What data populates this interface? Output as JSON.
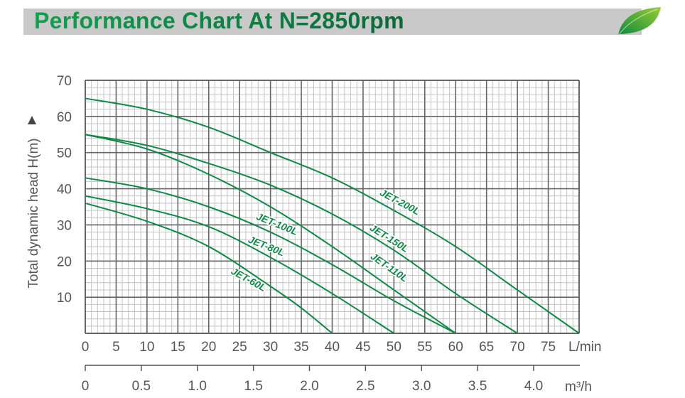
{
  "header": {
    "title": "Performance Chart At N=2850rpm",
    "logo_icon": "green-leaf-icon"
  },
  "colors": {
    "curve": "#0e8a45",
    "major_grid": "#666666",
    "minor_grid": "#c4c4c4",
    "banner": "#c8c9c8"
  },
  "chart_data": {
    "type": "line",
    "title": "Performance Chart At N=2850rpm",
    "ylabel": "Total dynamic head H(m)",
    "xlabel": "L/min",
    "x2label": "m³/h",
    "xlim": [
      0,
      80
    ],
    "ylim": [
      0,
      70
    ],
    "grid": true,
    "x_ticks": [
      0,
      5,
      10,
      15,
      20,
      25,
      30,
      35,
      40,
      45,
      50,
      55,
      60,
      65,
      70,
      75
    ],
    "x_tick_labels": [
      "0",
      "5",
      "10",
      "15",
      "20",
      "25",
      "30",
      "35",
      "40",
      "45",
      "50",
      "55",
      "60",
      "65",
      "70",
      "75"
    ],
    "y_ticks": [
      10,
      20,
      30,
      40,
      50,
      60,
      70
    ],
    "y_tick_labels": [
      "10",
      "20",
      "30",
      "40",
      "50",
      "60",
      "70"
    ],
    "x2_ticks": [
      0,
      0.5,
      1.0,
      1.5,
      2.0,
      2.5,
      3.0,
      3.5,
      4.0
    ],
    "x2_tick_labels": [
      "0",
      "0.5",
      "1.0",
      "1.5",
      "2.0",
      "2.5",
      "3.0",
      "3.5",
      "4.0"
    ],
    "series": [
      {
        "name": "JET-60L",
        "x": [
          0,
          10,
          20,
          30,
          35,
          40
        ],
        "y": [
          36,
          31,
          24,
          13,
          7,
          0
        ]
      },
      {
        "name": "JET-80L",
        "x": [
          0,
          10,
          20,
          30,
          40,
          50
        ],
        "y": [
          38,
          34.5,
          29.5,
          21,
          11,
          0
        ]
      },
      {
        "name": "JET-100L",
        "x": [
          0,
          10,
          20,
          30,
          40,
          50,
          60
        ],
        "y": [
          43,
          40,
          35,
          28,
          19,
          9,
          0
        ]
      },
      {
        "name": "JET-110L",
        "x": [
          0,
          10,
          20,
          30,
          40,
          50,
          60
        ],
        "y": [
          55,
          51,
          44,
          35,
          24,
          12,
          0
        ]
      },
      {
        "name": "JET-150L",
        "x": [
          0,
          10,
          20,
          30,
          40,
          50,
          60,
          70
        ],
        "y": [
          55,
          52,
          47,
          41,
          33,
          23,
          11,
          0
        ]
      },
      {
        "name": "JET-200L",
        "x": [
          0,
          10,
          20,
          30,
          40,
          50,
          60,
          70,
          80
        ],
        "y": [
          65,
          62,
          57,
          50,
          43,
          34,
          24,
          12,
          0
        ]
      }
    ]
  }
}
